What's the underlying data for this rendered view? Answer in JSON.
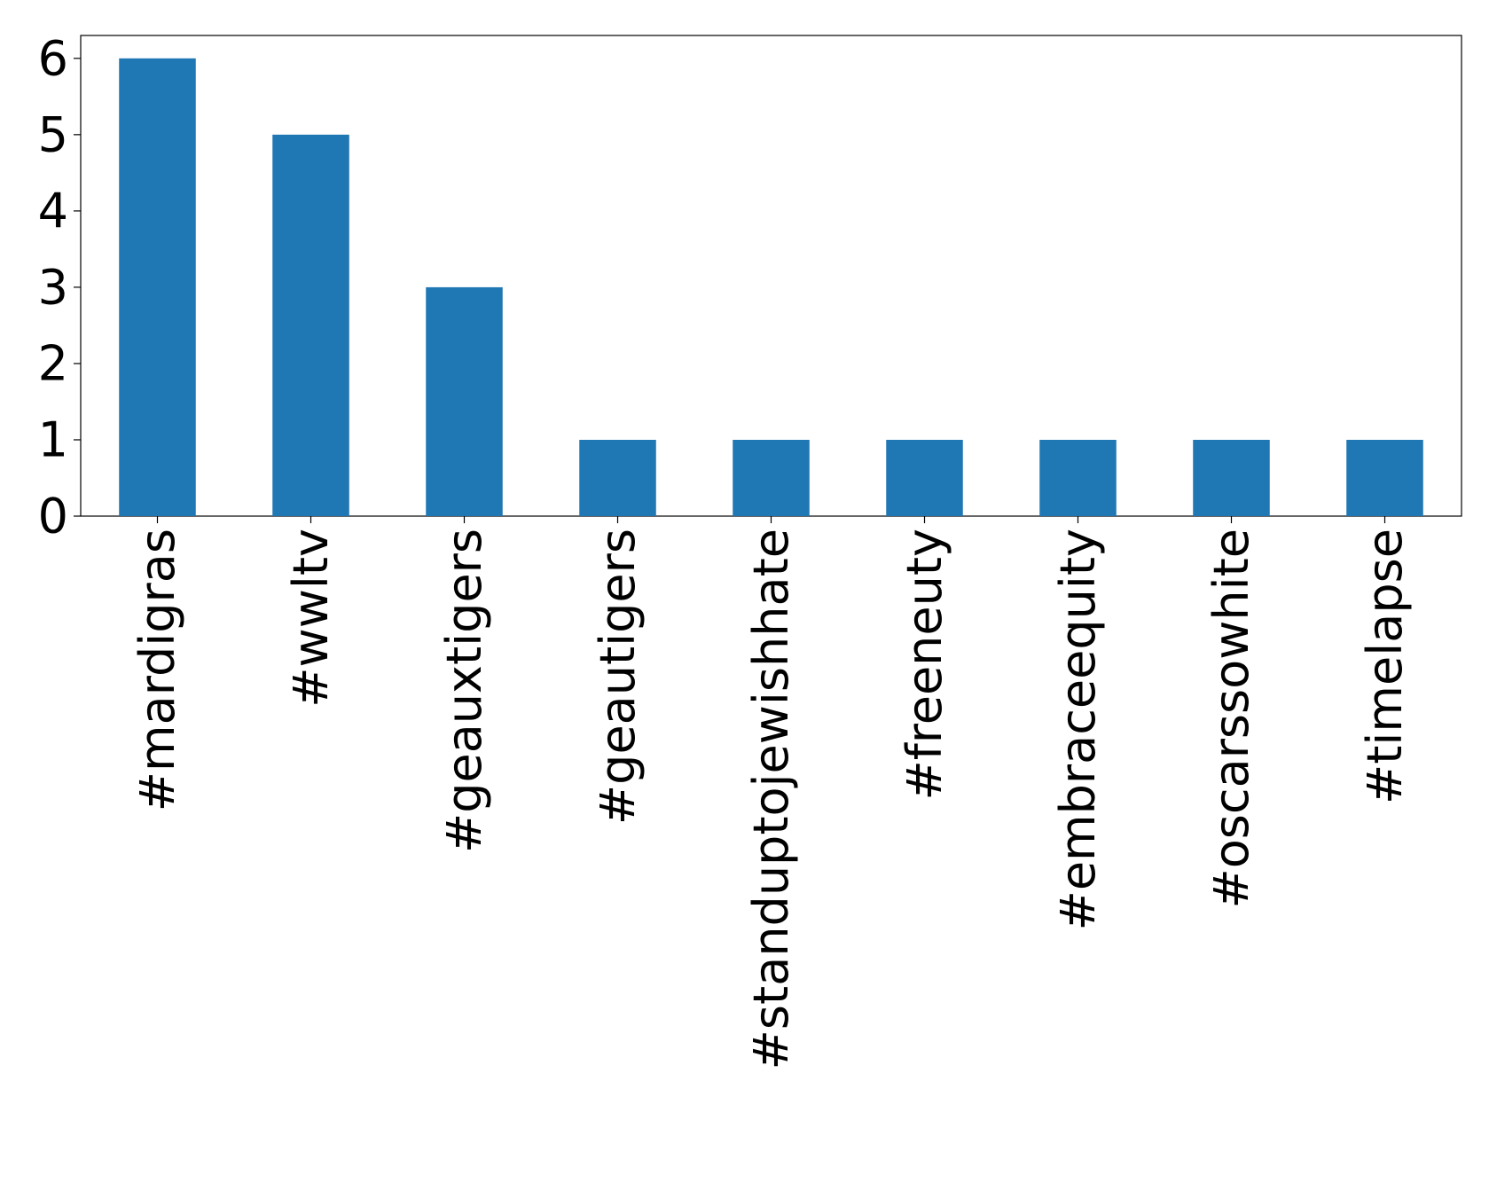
{
  "chart_data": {
    "type": "bar",
    "categories": [
      "#mardigras",
      "#wwltv",
      "#geauxtigers",
      "#geautigers",
      "#standuptojewishhate",
      "#freeneuty",
      "#embraceequity",
      "#oscarssowhite",
      "#timelapse"
    ],
    "values": [
      6,
      5,
      3,
      1,
      1,
      1,
      1,
      1,
      1
    ],
    "color": "#1f77b4",
    "ylim": [
      0,
      6.3
    ],
    "yticks": [
      0,
      1,
      2,
      3,
      4,
      5,
      6
    ],
    "grid": false
  }
}
